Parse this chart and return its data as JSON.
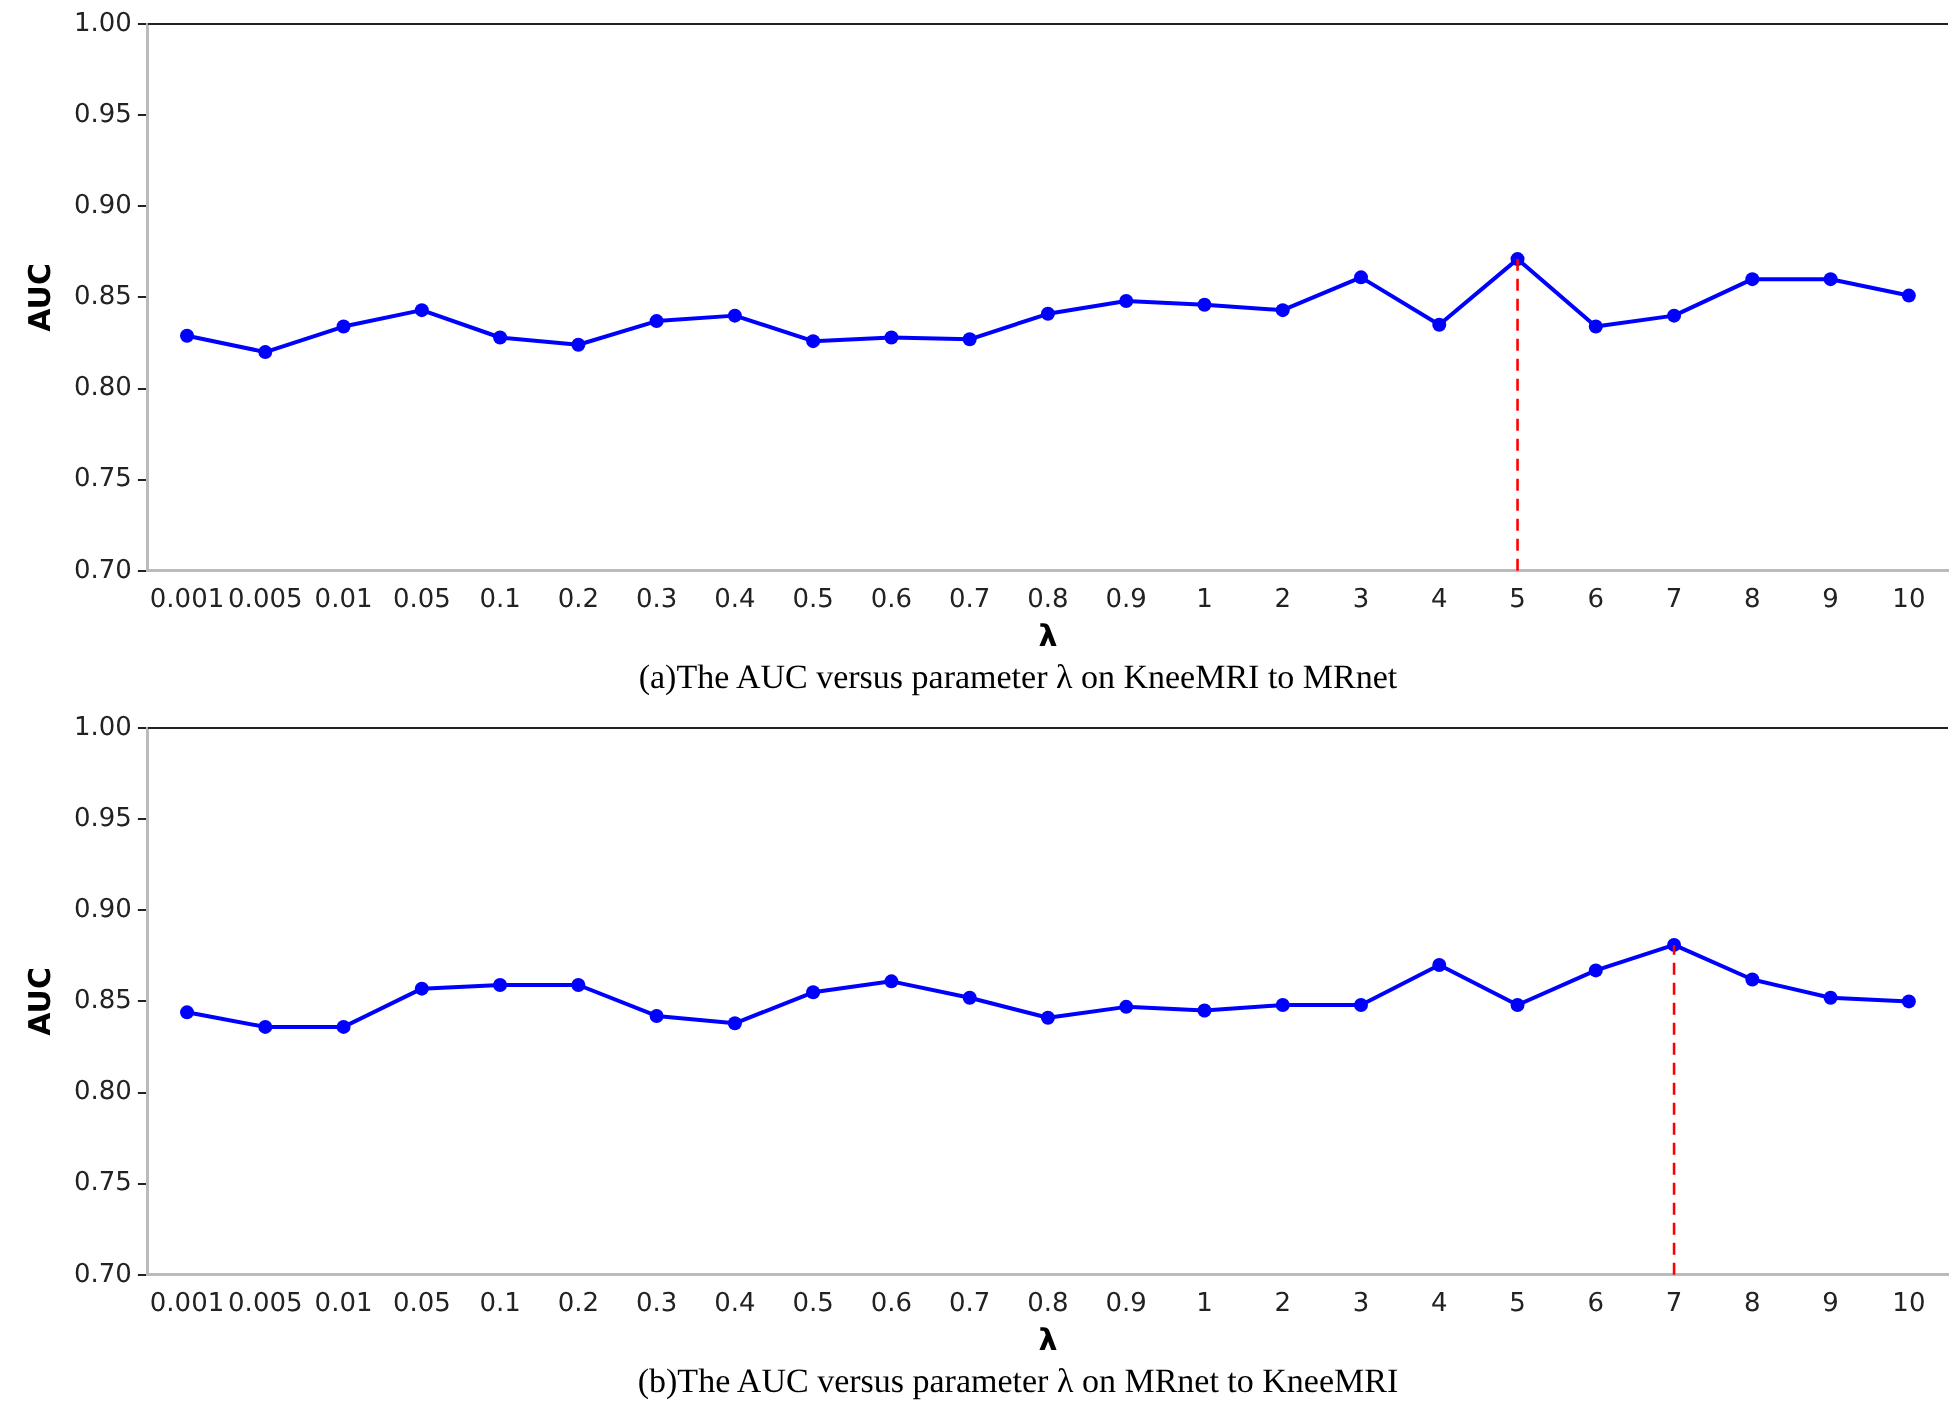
{
  "chart_data": [
    {
      "type": "line",
      "title": "(a)The AUC versus parameter λ on KneeMRI to MRnet",
      "xlabel": "λ",
      "ylabel": "AUC",
      "categories": [
        "0.001",
        "0.005",
        "0.01",
        "0.05",
        "0.1",
        "0.2",
        "0.3",
        "0.4",
        "0.5",
        "0.6",
        "0.7",
        "0.8",
        "0.9",
        "1",
        "2",
        "3",
        "4",
        "5",
        "6",
        "7",
        "8",
        "9",
        "10"
      ],
      "series": [
        {
          "color": "#0000ff",
          "values": [
            0.829,
            0.82,
            0.834,
            0.843,
            0.828,
            0.824,
            0.837,
            0.84,
            0.826,
            0.828,
            0.827,
            0.841,
            0.848,
            0.846,
            0.843,
            0.861,
            0.835,
            0.871,
            0.834,
            0.84,
            0.86,
            0.86,
            0.851
          ]
        }
      ],
      "ylim": [
        0.7,
        1.0
      ],
      "yticks": [
        {
          "value": 0.7,
          "label": "0.70"
        },
        {
          "value": 0.75,
          "label": "0.75"
        },
        {
          "value": 0.8,
          "label": "0.80"
        },
        {
          "value": 0.85,
          "label": "0.85"
        },
        {
          "value": 0.9,
          "label": "0.90"
        },
        {
          "value": 0.95,
          "label": "0.95"
        },
        {
          "value": 1.0,
          "label": "1.00"
        }
      ],
      "ref_lines": [
        {
          "axis": "x",
          "value": "5",
          "color": "#ff0000",
          "line_style": "dashed"
        }
      ],
      "grid": false,
      "legend": false,
      "marker": "circle",
      "line_style": "solid"
    },
    {
      "type": "line",
      "title": "(b)The AUC versus parameter λ on MRnet to KneeMRI",
      "xlabel": "λ",
      "ylabel": "AUC",
      "categories": [
        "0.001",
        "0.005",
        "0.01",
        "0.05",
        "0.1",
        "0.2",
        "0.3",
        "0.4",
        "0.5",
        "0.6",
        "0.7",
        "0.8",
        "0.9",
        "1",
        "2",
        "3",
        "4",
        "5",
        "6",
        "7",
        "8",
        "9",
        "10"
      ],
      "series": [
        {
          "color": "#0000ff",
          "values": [
            0.844,
            0.836,
            0.836,
            0.857,
            0.859,
            0.859,
            0.842,
            0.838,
            0.855,
            0.861,
            0.852,
            0.841,
            0.847,
            0.845,
            0.848,
            0.848,
            0.87,
            0.848,
            0.867,
            0.881,
            0.862,
            0.852,
            0.85
          ]
        }
      ],
      "ylim": [
        0.7,
        1.0
      ],
      "yticks": [
        {
          "value": 0.7,
          "label": "0.70"
        },
        {
          "value": 0.75,
          "label": "0.75"
        },
        {
          "value": 0.8,
          "label": "0.80"
        },
        {
          "value": 0.85,
          "label": "0.85"
        },
        {
          "value": 0.9,
          "label": "0.90"
        },
        {
          "value": 0.95,
          "label": "0.95"
        },
        {
          "value": 1.0,
          "label": "1.00"
        }
      ],
      "ref_lines": [
        {
          "axis": "x",
          "value": "7",
          "color": "#ff0000",
          "line_style": "dashed"
        }
      ],
      "grid": false,
      "legend": false,
      "marker": "circle",
      "line_style": "solid"
    }
  ]
}
